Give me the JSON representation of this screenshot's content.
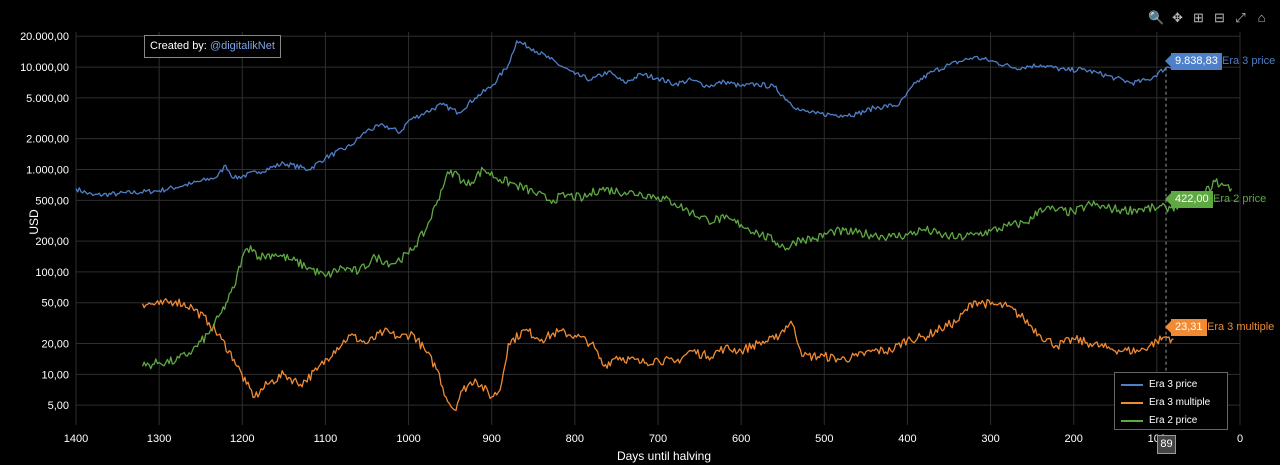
{
  "credit": {
    "prefix": "Created by:",
    "handle": "@digitalikNet"
  },
  "modebar": [
    {
      "name": "zoom-icon",
      "glyph": "🔍"
    },
    {
      "name": "pan-icon",
      "glyph": "✥"
    },
    {
      "name": "zoom-in-icon",
      "glyph": "⊞"
    },
    {
      "name": "zoom-out-icon",
      "glyph": "⊟"
    },
    {
      "name": "autoscale-icon",
      "glyph": "⤢"
    },
    {
      "name": "reset-axes-icon",
      "glyph": "⌂"
    }
  ],
  "hover": {
    "x_label": "89",
    "era3_price": {
      "value": "9.838,83",
      "name": "Era 3 price"
    },
    "era2_price": {
      "value": "422,00",
      "name": "Era 2 price"
    },
    "era3_multiple": {
      "value": "23,31",
      "name": "Era 3 multiple"
    }
  },
  "chart_data": {
    "type": "line",
    "xlabel": "Days until halving",
    "ylabel": "USD",
    "x_reversed": true,
    "y_scale": "log",
    "xlim": [
      1400,
      0
    ],
    "ylim": [
      3,
      22000
    ],
    "x_ticks": [
      1400,
      1300,
      1200,
      1100,
      1000,
      900,
      800,
      700,
      600,
      500,
      400,
      300,
      200,
      100,
      0
    ],
    "y_ticks": [
      5,
      10,
      20,
      50,
      100,
      200,
      500,
      1000,
      2000,
      5000,
      10000,
      20000
    ],
    "y_tick_labels": [
      "5,00",
      "10,00",
      "20,00",
      "50,00",
      "100,00",
      "200,00",
      "500,00",
      "1.000,00",
      "2.000,00",
      "5.000,00",
      "10.000,00",
      "20.000,00"
    ],
    "grid": true,
    "legend_position": "bottom-right",
    "series": [
      {
        "name": "Era 3 price",
        "color": "#4e7fc9",
        "points": [
          [
            1400,
            650
          ],
          [
            1380,
            560
          ],
          [
            1350,
            580
          ],
          [
            1300,
            620
          ],
          [
            1260,
            730
          ],
          [
            1230,
            850
          ],
          [
            1220,
            1100
          ],
          [
            1210,
            820
          ],
          [
            1180,
            950
          ],
          [
            1150,
            1150
          ],
          [
            1120,
            1000
          ],
          [
            1100,
            1300
          ],
          [
            1070,
            1700
          ],
          [
            1050,
            2400
          ],
          [
            1030,
            2700
          ],
          [
            1010,
            2300
          ],
          [
            1000,
            3000
          ],
          [
            980,
            3600
          ],
          [
            960,
            4300
          ],
          [
            940,
            3600
          ],
          [
            920,
            5000
          ],
          [
            900,
            6500
          ],
          [
            880,
            10500
          ],
          [
            870,
            18000
          ],
          [
            850,
            15000
          ],
          [
            830,
            12000
          ],
          [
            800,
            8500
          ],
          [
            780,
            7500
          ],
          [
            760,
            9000
          ],
          [
            740,
            7000
          ],
          [
            720,
            8500
          ],
          [
            700,
            7800
          ],
          [
            680,
            6800
          ],
          [
            660,
            7500
          ],
          [
            640,
            6500
          ],
          [
            620,
            7200
          ],
          [
            600,
            6500
          ],
          [
            580,
            6800
          ],
          [
            560,
            6400
          ],
          [
            545,
            4800
          ],
          [
            530,
            3800
          ],
          [
            510,
            3500
          ],
          [
            480,
            3400
          ],
          [
            460,
            3500
          ],
          [
            440,
            4000
          ],
          [
            410,
            4300
          ],
          [
            390,
            7000
          ],
          [
            370,
            9000
          ],
          [
            350,
            10500
          ],
          [
            320,
            12500
          ],
          [
            300,
            11500
          ],
          [
            270,
            9800
          ],
          [
            240,
            10500
          ],
          [
            210,
            9300
          ],
          [
            190,
            9500
          ],
          [
            170,
            8700
          ],
          [
            150,
            7800
          ],
          [
            130,
            7000
          ],
          [
            110,
            7500
          ],
          [
            89,
            9838.83
          ],
          [
            80,
            10200
          ]
        ]
      },
      {
        "name": "Era 3 multiple",
        "color": "#f08a33",
        "points": [
          [
            1320,
            49
          ],
          [
            1300,
            48
          ],
          [
            1280,
            52
          ],
          [
            1260,
            45
          ],
          [
            1240,
            32
          ],
          [
            1225,
            22
          ],
          [
            1210,
            14
          ],
          [
            1195,
            8
          ],
          [
            1185,
            6
          ],
          [
            1170,
            8
          ],
          [
            1150,
            10
          ],
          [
            1130,
            8
          ],
          [
            1110,
            11
          ],
          [
            1090,
            17
          ],
          [
            1070,
            24
          ],
          [
            1050,
            20
          ],
          [
            1030,
            26
          ],
          [
            1010,
            23
          ],
          [
            995,
            25
          ],
          [
            980,
            17
          ],
          [
            965,
            11
          ],
          [
            955,
            6
          ],
          [
            945,
            4.5
          ],
          [
            935,
            7
          ],
          [
            920,
            9
          ],
          [
            900,
            6
          ],
          [
            890,
            7
          ],
          [
            880,
            20
          ],
          [
            860,
            27
          ],
          [
            840,
            22
          ],
          [
            820,
            26
          ],
          [
            800,
            24
          ],
          [
            780,
            20
          ],
          [
            765,
            12
          ],
          [
            750,
            15
          ],
          [
            720,
            13
          ],
          [
            700,
            14
          ],
          [
            680,
            13
          ],
          [
            660,
            17
          ],
          [
            640,
            15
          ],
          [
            620,
            18
          ],
          [
            600,
            17
          ],
          [
            580,
            20
          ],
          [
            560,
            22
          ],
          [
            540,
            33
          ],
          [
            525,
            15
          ],
          [
            500,
            15
          ],
          [
            480,
            14
          ],
          [
            460,
            15
          ],
          [
            440,
            17
          ],
          [
            420,
            17
          ],
          [
            400,
            22
          ],
          [
            380,
            23
          ],
          [
            360,
            28
          ],
          [
            340,
            33
          ],
          [
            320,
            52
          ],
          [
            300,
            48
          ],
          [
            280,
            46
          ],
          [
            260,
            35
          ],
          [
            240,
            24
          ],
          [
            220,
            19
          ],
          [
            200,
            22
          ],
          [
            180,
            20
          ],
          [
            160,
            18
          ],
          [
            140,
            17
          ],
          [
            120,
            17
          ],
          [
            100,
            21
          ],
          [
            89,
            23.31
          ],
          [
            80,
            22
          ]
        ]
      },
      {
        "name": "Era 2 price",
        "color": "#5ea942",
        "points": [
          [
            1320,
            12
          ],
          [
            1300,
            13
          ],
          [
            1280,
            13.5
          ],
          [
            1260,
            17
          ],
          [
            1240,
            25
          ],
          [
            1225,
            40
          ],
          [
            1210,
            70
          ],
          [
            1200,
            140
          ],
          [
            1190,
            180
          ],
          [
            1180,
            140
          ],
          [
            1160,
            150
          ],
          [
            1140,
            130
          ],
          [
            1120,
            110
          ],
          [
            1100,
            90
          ],
          [
            1080,
            110
          ],
          [
            1060,
            100
          ],
          [
            1040,
            140
          ],
          [
            1020,
            120
          ],
          [
            1000,
            150
          ],
          [
            980,
            250
          ],
          [
            965,
            500
          ],
          [
            955,
            850
          ],
          [
            945,
            950
          ],
          [
            930,
            700
          ],
          [
            910,
            1000
          ],
          [
            890,
            800
          ],
          [
            870,
            700
          ],
          [
            850,
            600
          ],
          [
            830,
            500
          ],
          [
            810,
            560
          ],
          [
            790,
            520
          ],
          [
            770,
            650
          ],
          [
            740,
            600
          ],
          [
            720,
            580
          ],
          [
            700,
            540
          ],
          [
            680,
            470
          ],
          [
            660,
            380
          ],
          [
            640,
            320
          ],
          [
            620,
            330
          ],
          [
            600,
            290
          ],
          [
            580,
            240
          ],
          [
            560,
            200
          ],
          [
            545,
            170
          ],
          [
            530,
            210
          ],
          [
            510,
            210
          ],
          [
            490,
            250
          ],
          [
            460,
            240
          ],
          [
            440,
            230
          ],
          [
            420,
            220
          ],
          [
            400,
            230
          ],
          [
            380,
            260
          ],
          [
            360,
            230
          ],
          [
            340,
            215
          ],
          [
            320,
            230
          ],
          [
            300,
            250
          ],
          [
            280,
            280
          ],
          [
            260,
            300
          ],
          [
            250,
            330
          ],
          [
            240,
            420
          ],
          [
            220,
            400
          ],
          [
            200,
            380
          ],
          [
            180,
            460
          ],
          [
            160,
            420
          ],
          [
            140,
            400
          ],
          [
            120,
            410
          ],
          [
            100,
            420
          ],
          [
            89,
            422
          ],
          [
            70,
            450
          ],
          [
            50,
            500
          ],
          [
            30,
            760
          ],
          [
            20,
            700
          ],
          [
            10,
            650
          ]
        ]
      }
    ]
  }
}
